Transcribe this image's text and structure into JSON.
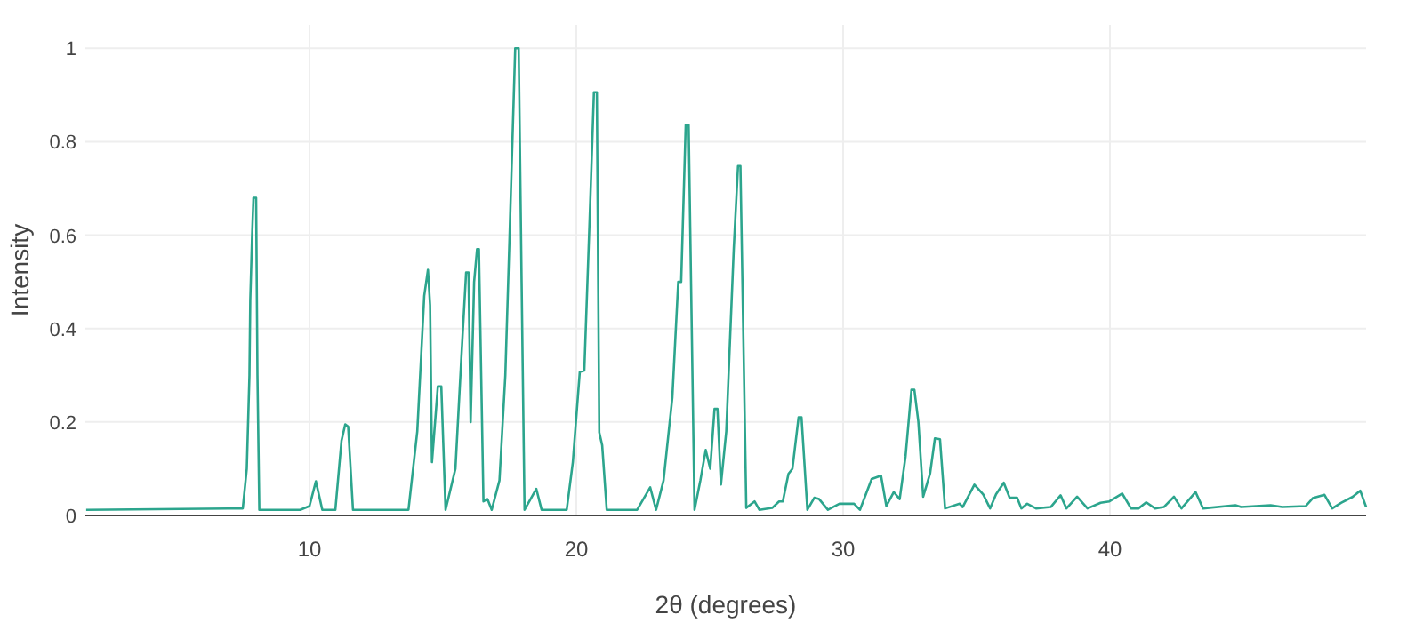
{
  "chart_data": {
    "type": "line",
    "xlabel": "2θ (degrees)",
    "ylabel": "Intensity",
    "xlim": [
      1.6,
      49.6
    ],
    "ylim": [
      0,
      1.05
    ],
    "xticks": [
      10,
      20,
      30,
      40
    ],
    "yticks": [
      0,
      0.2,
      0.4,
      0.6,
      0.8,
      1
    ],
    "grid": true,
    "series": [
      {
        "color": "#2ca58d",
        "x": [
          1.63,
          7.5,
          7.65,
          7.75,
          7.78,
          7.85,
          7.9,
          8.0,
          8.05,
          8.12,
          9.65,
          10.0,
          10.24,
          10.48,
          10.97,
          11.2,
          11.34,
          11.45,
          11.63,
          13.71,
          14.04,
          14.3,
          14.44,
          14.52,
          14.59,
          14.81,
          14.94,
          15.1,
          15.47,
          15.69,
          15.87,
          15.96,
          16.04,
          16.17,
          16.28,
          16.35,
          16.52,
          16.67,
          16.83,
          17.12,
          17.34,
          17.5,
          17.71,
          17.84,
          17.95,
          18.06,
          18.5,
          18.7,
          19.64,
          19.87,
          20.13,
          20.3,
          20.53,
          20.66,
          20.77,
          20.86,
          20.97,
          21.14,
          22.28,
          22.77,
          22.99,
          23.27,
          23.6,
          23.82,
          23.93,
          24.1,
          24.21,
          24.43,
          24.65,
          24.85,
          25.02,
          25.18,
          25.29,
          25.42,
          25.62,
          25.9,
          26.06,
          26.15,
          26.37,
          26.68,
          26.86,
          27.34,
          27.6,
          27.74,
          27.95,
          28.1,
          28.33,
          28.44,
          28.66,
          28.92,
          29.1,
          29.43,
          29.86,
          30.41,
          30.63,
          31.07,
          31.42,
          31.62,
          31.9,
          32.12,
          32.34,
          32.56,
          32.67,
          32.82,
          33.0,
          33.26,
          33.44,
          33.63,
          33.82,
          34.37,
          34.48,
          34.92,
          35.25,
          35.51,
          35.73,
          36.02,
          36.24,
          36.52,
          36.68,
          36.9,
          37.23,
          37.78,
          38.15,
          38.37,
          38.77,
          39.16,
          39.65,
          39.98,
          40.46,
          40.79,
          41.07,
          41.36,
          41.69,
          42.02,
          42.4,
          42.68,
          43.21,
          43.49,
          44.7,
          44.92,
          46.02,
          46.46,
          47.34,
          47.6,
          48.04,
          48.33,
          48.66,
          49.1,
          49.38,
          49.6
        ],
        "values": [
          0.012,
          0.015,
          0.1,
          0.3,
          0.46,
          0.6,
          0.68,
          0.68,
          0.3,
          0.012,
          0.012,
          0.02,
          0.073,
          0.012,
          0.012,
          0.16,
          0.195,
          0.19,
          0.012,
          0.012,
          0.18,
          0.47,
          0.526,
          0.45,
          0.114,
          0.276,
          0.276,
          0.012,
          0.1,
          0.336,
          0.52,
          0.52,
          0.2,
          0.5,
          0.57,
          0.57,
          0.03,
          0.035,
          0.012,
          0.075,
          0.3,
          0.6,
          1.0,
          1.0,
          0.5,
          0.012,
          0.057,
          0.012,
          0.012,
          0.114,
          0.307,
          0.31,
          0.684,
          0.906,
          0.906,
          0.178,
          0.15,
          0.012,
          0.012,
          0.06,
          0.012,
          0.075,
          0.253,
          0.5,
          0.5,
          0.836,
          0.836,
          0.012,
          0.075,
          0.14,
          0.1,
          0.228,
          0.228,
          0.066,
          0.18,
          0.57,
          0.748,
          0.748,
          0.016,
          0.03,
          0.012,
          0.016,
          0.03,
          0.03,
          0.089,
          0.1,
          0.21,
          0.21,
          0.012,
          0.038,
          0.035,
          0.012,
          0.025,
          0.025,
          0.012,
          0.078,
          0.085,
          0.02,
          0.05,
          0.035,
          0.127,
          0.269,
          0.269,
          0.2,
          0.04,
          0.09,
          0.165,
          0.163,
          0.015,
          0.025,
          0.018,
          0.066,
          0.045,
          0.015,
          0.045,
          0.07,
          0.038,
          0.038,
          0.015,
          0.025,
          0.015,
          0.018,
          0.043,
          0.015,
          0.04,
          0.015,
          0.027,
          0.03,
          0.047,
          0.015,
          0.015,
          0.028,
          0.015,
          0.018,
          0.04,
          0.015,
          0.05,
          0.015,
          0.022,
          0.018,
          0.022,
          0.018,
          0.02,
          0.037,
          0.044,
          0.015,
          0.027,
          0.04,
          0.053,
          0.018
        ]
      }
    ]
  }
}
